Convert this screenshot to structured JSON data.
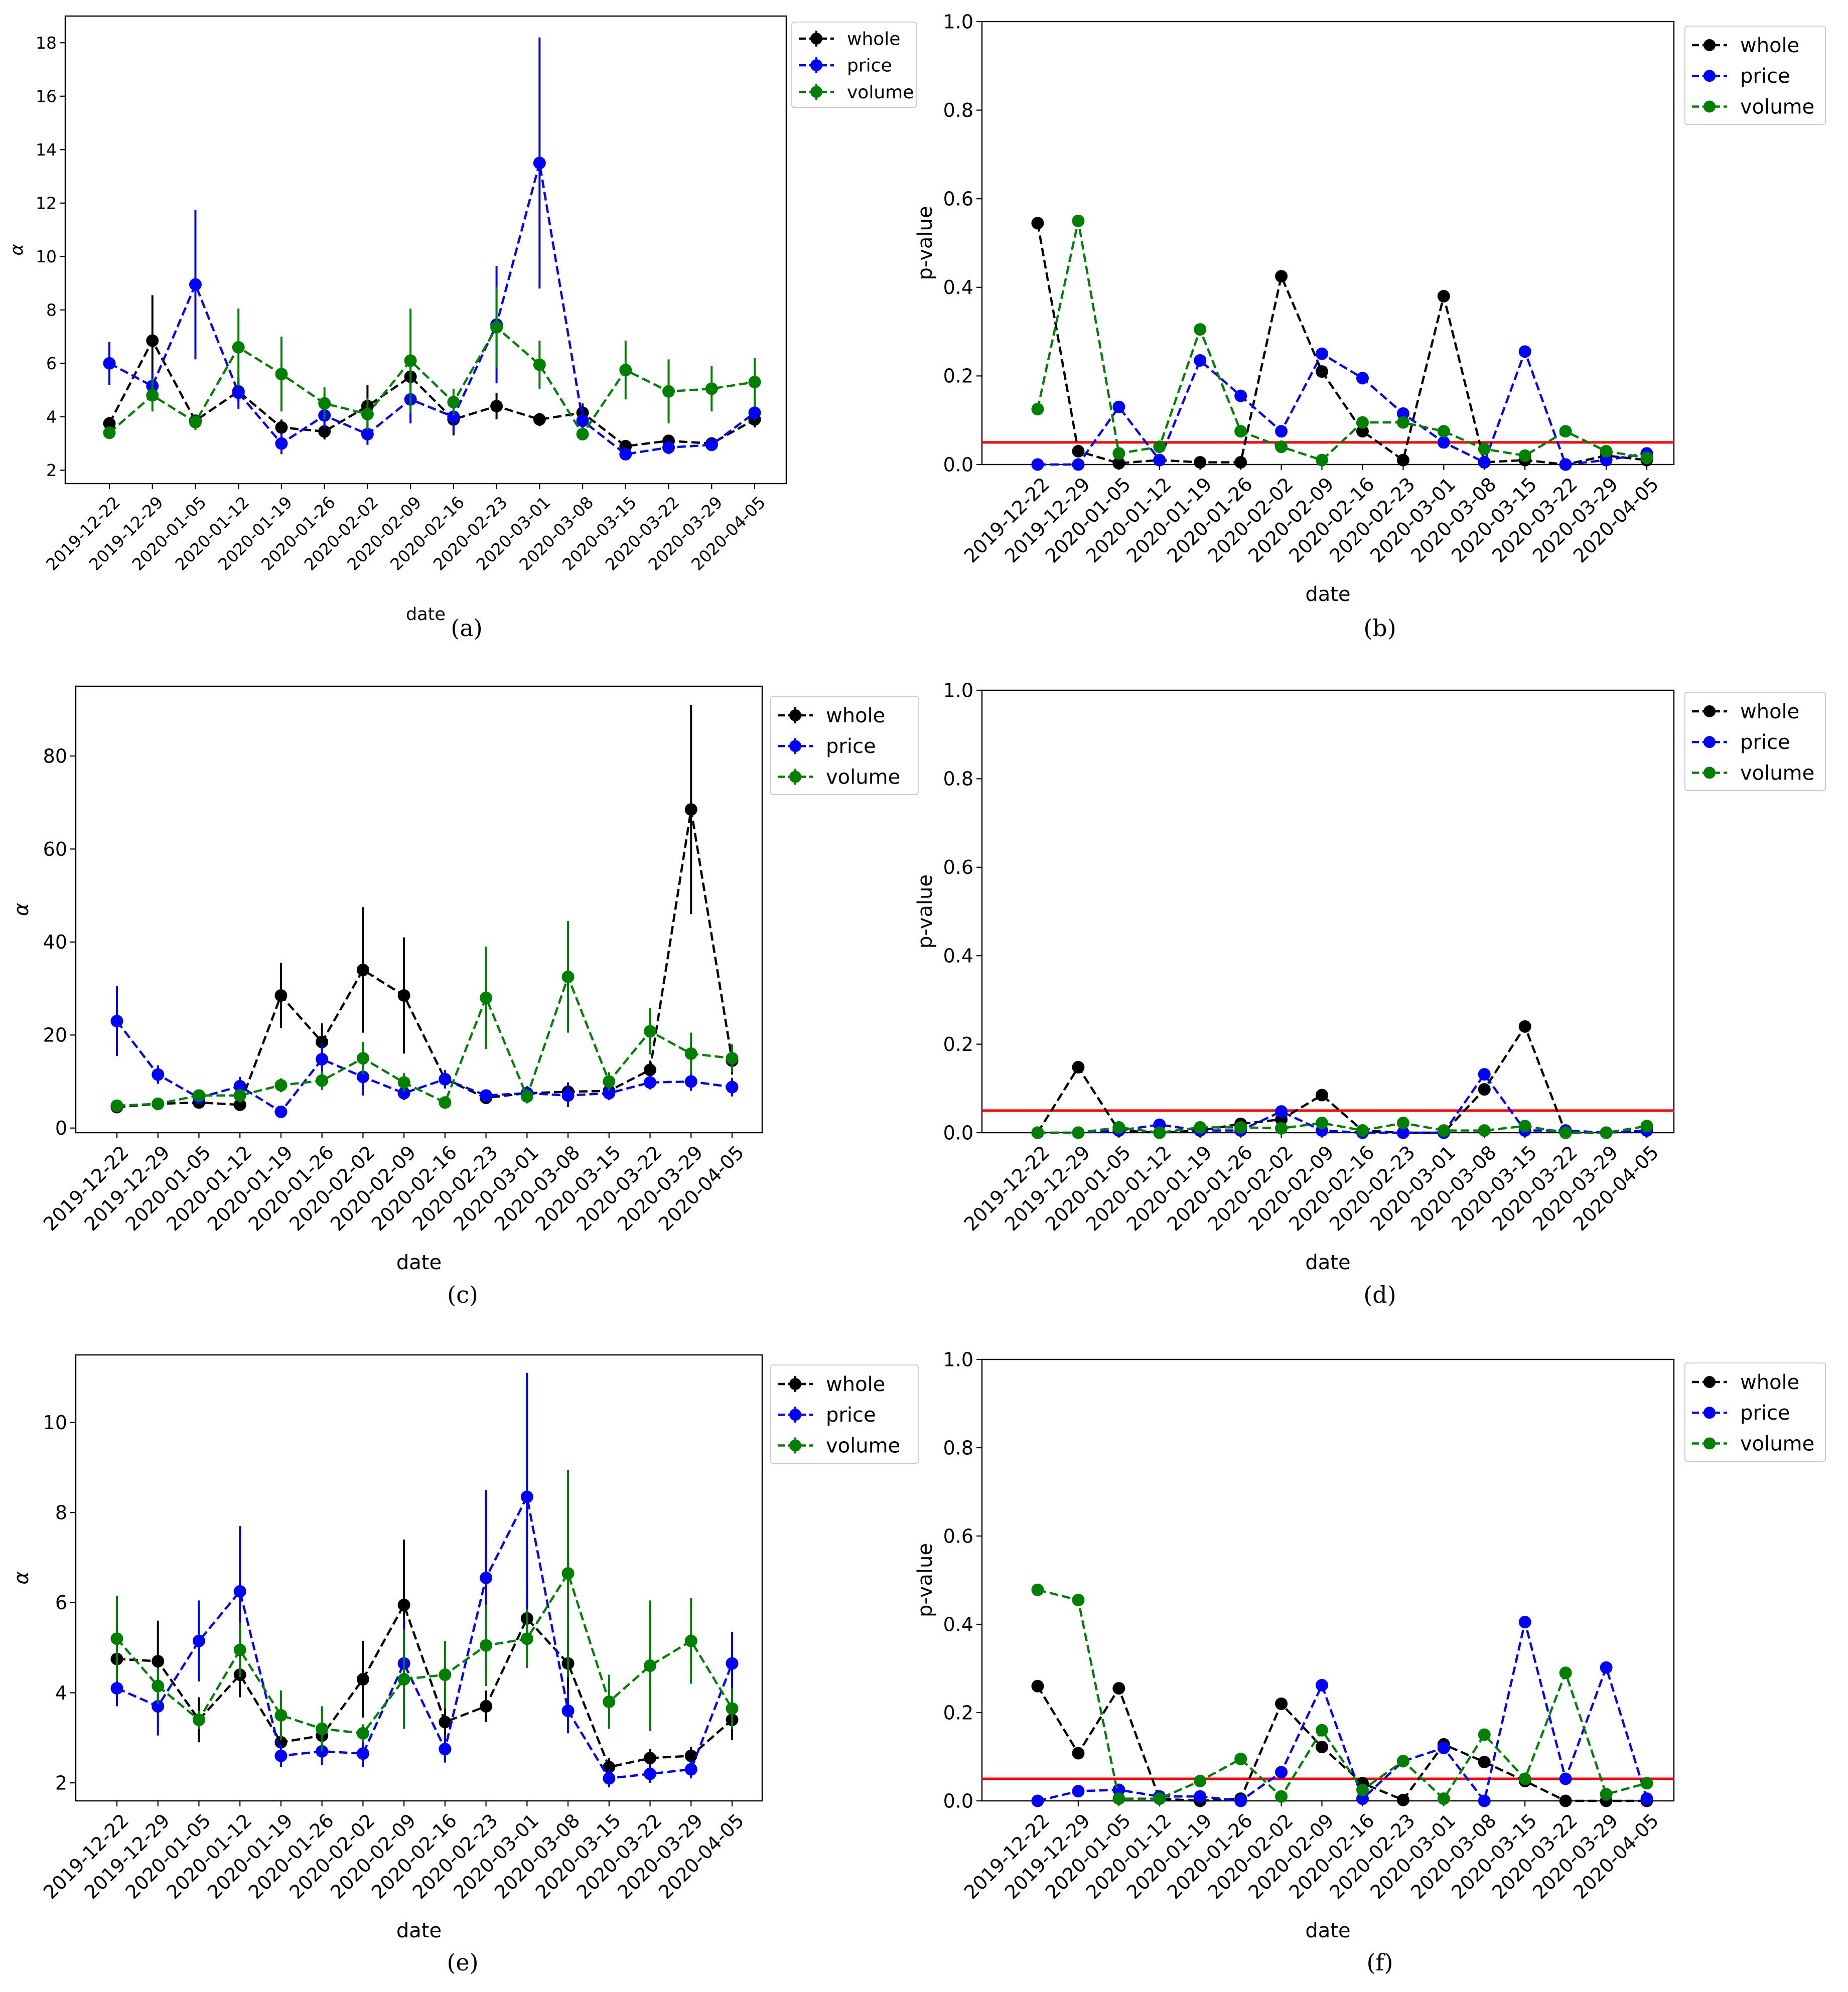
{
  "figure": {
    "dates": [
      "2019-12-22",
      "2019-12-29",
      "2020-01-05",
      "2020-01-12",
      "2020-01-19",
      "2020-01-26",
      "2020-02-02",
      "2020-02-09",
      "2020-02-16",
      "2020-02-23",
      "2020-03-01",
      "2020-03-08",
      "2020-03-15",
      "2020-03-22",
      "2020-03-29",
      "2020-04-05"
    ],
    "series_colors": {
      "whole": "#000000",
      "price": "#0000ff",
      "volume": "#008000"
    },
    "threshold_color": "#ff0000"
  },
  "chart_data": [
    {
      "id": "a",
      "caption": "(a)",
      "type": "line",
      "errorbars": true,
      "xlabel": "date",
      "ylabel": "α",
      "ylim": [
        1.5,
        19.0
      ],
      "yticks": [
        2,
        4,
        6,
        8,
        10,
        12,
        14,
        16,
        18
      ],
      "ytick_labels": [
        "2",
        "4",
        "6",
        "8",
        "10",
        "12",
        "14",
        "16",
        "18"
      ],
      "legend": [
        "whole",
        "price",
        "volume"
      ],
      "series": [
        {
          "name": "whole",
          "values": [
            3.75,
            6.85,
            3.85,
            4.95,
            3.6,
            3.45,
            4.4,
            5.5,
            3.9,
            4.4,
            3.9,
            4.15,
            2.9,
            3.1,
            3.0,
            3.9
          ],
          "errors": [
            0.25,
            1.7,
            0.25,
            0.4,
            0.3,
            0.3,
            0.8,
            0.4,
            0.6,
            0.5,
            0.25,
            0.35,
            0.2,
            0.2,
            0.2,
            0.3
          ]
        },
        {
          "name": "price",
          "values": [
            6.0,
            5.15,
            8.95,
            4.9,
            3.0,
            4.05,
            3.35,
            4.65,
            4.0,
            7.45,
            13.5,
            3.85,
            2.6,
            2.85,
            2.95,
            4.15
          ],
          "errors": [
            0.8,
            0.5,
            2.8,
            0.6,
            0.4,
            0.5,
            0.4,
            0.9,
            0.6,
            2.2,
            4.7,
            0.5,
            0.2,
            0.25,
            0.2,
            0.3
          ]
        },
        {
          "name": "volume",
          "values": [
            3.4,
            4.8,
            3.8,
            6.6,
            5.6,
            4.5,
            4.1,
            6.1,
            4.55,
            7.35,
            5.95,
            3.35,
            5.75,
            4.95,
            5.05,
            5.3
          ],
          "errors": [
            0.2,
            0.6,
            0.3,
            1.45,
            1.4,
            0.6,
            0.6,
            1.95,
            0.5,
            1.5,
            0.9,
            0.2,
            1.1,
            1.2,
            0.85,
            0.9
          ]
        }
      ]
    },
    {
      "id": "b",
      "caption": "(b)",
      "type": "line",
      "xlabel": "date",
      "ylabel": "p-value",
      "ylim": [
        0.0,
        1.0
      ],
      "yticks": [
        0.0,
        0.2,
        0.4,
        0.6,
        0.8,
        1.0
      ],
      "ytick_labels": [
        "0.0",
        "0.2",
        "0.4",
        "0.6",
        "0.8",
        "1.0"
      ],
      "threshold": 0.05,
      "legend": [
        "whole",
        "price",
        "volume"
      ],
      "series": [
        {
          "name": "whole",
          "values": [
            0.545,
            0.03,
            0.003,
            0.01,
            0.005,
            0.005,
            0.425,
            0.21,
            0.075,
            0.01,
            0.38,
            0.005,
            0.01,
            0.0,
            0.02,
            0.01
          ]
        },
        {
          "name": "price",
          "values": [
            0.0,
            0.0,
            0.13,
            0.01,
            0.235,
            0.155,
            0.075,
            0.25,
            0.195,
            0.115,
            0.05,
            0.005,
            0.255,
            0.0,
            0.01,
            0.025
          ]
        },
        {
          "name": "volume",
          "values": [
            0.125,
            0.55,
            0.025,
            0.04,
            0.305,
            0.075,
            0.04,
            0.01,
            0.095,
            0.095,
            0.075,
            0.035,
            0.02,
            0.075,
            0.03,
            0.015
          ]
        }
      ]
    },
    {
      "id": "c",
      "caption": "(c)",
      "type": "line",
      "errorbars": true,
      "xlabel": "date",
      "ylabel": "α",
      "ylim": [
        -1.0,
        95.0
      ],
      "yticks": [
        0,
        20,
        40,
        60,
        80
      ],
      "ytick_labels": [
        "0",
        "20",
        "40",
        "60",
        "80"
      ],
      "legend": [
        "whole",
        "price",
        "volume"
      ],
      "series": [
        {
          "name": "whole",
          "values": [
            4.5,
            5.2,
            5.5,
            5.0,
            28.5,
            18.5,
            34.0,
            28.5,
            10.5,
            6.5,
            7.5,
            7.8,
            8.0,
            12.5,
            68.5,
            14.5
          ],
          "errors": [
            0.5,
            0.5,
            0.8,
            0.8,
            7.0,
            4.0,
            13.5,
            12.5,
            1.5,
            1.0,
            1.0,
            2.0,
            1.0,
            2.0,
            22.5,
            3.0
          ]
        },
        {
          "name": "price",
          "values": [
            23.0,
            11.5,
            6.5,
            9.0,
            3.5,
            14.8,
            11.0,
            7.5,
            10.5,
            7.0,
            7.5,
            7.0,
            7.5,
            9.8,
            10.0,
            8.8
          ],
          "errors": [
            7.5,
            2.0,
            1.0,
            2.0,
            1.0,
            3.5,
            4.0,
            1.5,
            2.0,
            1.0,
            1.5,
            2.5,
            1.5,
            1.5,
            2.0,
            2.0
          ]
        },
        {
          "name": "volume",
          "values": [
            4.8,
            5.2,
            7.0,
            7.0,
            9.2,
            10.2,
            15.0,
            9.8,
            5.5,
            28.0,
            6.8,
            32.5,
            10.0,
            20.8,
            16.0,
            15.0
          ],
          "errors": [
            1.0,
            1.0,
            1.0,
            1.5,
            1.5,
            2.0,
            3.5,
            2.0,
            1.0,
            11.0,
            1.5,
            12.0,
            2.0,
            5.0,
            4.5,
            3.0
          ]
        }
      ]
    },
    {
      "id": "d",
      "caption": "(d)",
      "type": "line",
      "xlabel": "date",
      "ylabel": "p-value",
      "ylim": [
        0.0,
        1.0
      ],
      "yticks": [
        0.0,
        0.2,
        0.4,
        0.6,
        0.8,
        1.0
      ],
      "ytick_labels": [
        "0.0",
        "0.2",
        "0.4",
        "0.6",
        "0.8",
        "1.0"
      ],
      "threshold": 0.05,
      "legend": [
        "whole",
        "price",
        "volume"
      ],
      "series": [
        {
          "name": "whole",
          "values": [
            0.0,
            0.148,
            0.005,
            0.0,
            0.005,
            0.02,
            0.03,
            0.085,
            0.005,
            0.0,
            0.0,
            0.098,
            0.24,
            0.0,
            0.0,
            0.005
          ]
        },
        {
          "name": "price",
          "values": [
            0.0,
            0.0,
            0.005,
            0.018,
            0.005,
            0.005,
            0.048,
            0.005,
            0.0,
            0.0,
            0.0,
            0.132,
            0.005,
            0.005,
            0.0,
            0.005
          ]
        },
        {
          "name": "volume",
          "values": [
            0.0,
            0.0,
            0.012,
            0.0,
            0.012,
            0.012,
            0.01,
            0.022,
            0.005,
            0.022,
            0.005,
            0.005,
            0.015,
            0.0,
            0.0,
            0.015
          ]
        }
      ]
    },
    {
      "id": "e",
      "caption": "(e)",
      "type": "line",
      "errorbars": true,
      "xlabel": "date",
      "ylabel": "α",
      "ylim": [
        1.6,
        11.5
      ],
      "yticks": [
        2,
        4,
        6,
        8,
        10
      ],
      "ytick_labels": [
        "2",
        "4",
        "6",
        "8",
        "10"
      ],
      "legend": [
        "whole",
        "price",
        "volume"
      ],
      "series": [
        {
          "name": "whole",
          "values": [
            4.75,
            4.7,
            3.4,
            4.4,
            2.9,
            3.05,
            4.3,
            5.95,
            3.35,
            3.7,
            5.65,
            4.65,
            2.35,
            2.55,
            2.6,
            3.4
          ],
          "errors": [
            0.4,
            0.9,
            0.5,
            0.5,
            0.3,
            0.3,
            0.85,
            1.45,
            0.3,
            0.35,
            0.7,
            0.6,
            0.2,
            0.2,
            0.2,
            0.45
          ]
        },
        {
          "name": "price",
          "values": [
            4.1,
            3.7,
            5.15,
            6.25,
            2.6,
            2.7,
            2.65,
            4.65,
            2.75,
            6.55,
            8.35,
            3.6,
            2.1,
            2.2,
            2.3,
            4.65
          ],
          "errors": [
            0.4,
            0.65,
            0.9,
            1.45,
            0.25,
            0.3,
            0.3,
            1.0,
            0.3,
            1.95,
            2.75,
            0.5,
            0.2,
            0.2,
            0.2,
            0.7
          ]
        },
        {
          "name": "volume",
          "values": [
            5.2,
            4.15,
            3.4,
            4.95,
            3.5,
            3.2,
            3.1,
            4.3,
            4.4,
            5.05,
            5.2,
            6.65,
            3.8,
            4.6,
            5.15,
            3.65
          ],
          "errors": [
            0.95,
            0.4,
            0.2,
            0.6,
            0.55,
            0.5,
            0.2,
            1.1,
            0.75,
            0.9,
            0.65,
            2.3,
            0.6,
            1.45,
            0.95,
            0.45
          ]
        }
      ]
    },
    {
      "id": "f",
      "caption": "(f)",
      "type": "line",
      "xlabel": "date",
      "ylabel": "p-value",
      "ylim": [
        0.0,
        1.0
      ],
      "yticks": [
        0.0,
        0.2,
        0.4,
        0.6,
        0.8,
        1.0
      ],
      "ytick_labels": [
        "0.0",
        "0.2",
        "0.4",
        "0.6",
        "0.8",
        "1.0"
      ],
      "threshold": 0.05,
      "legend": [
        "whole",
        "price",
        "volume"
      ],
      "series": [
        {
          "name": "whole",
          "values": [
            0.26,
            0.108,
            0.255,
            0.005,
            0.0,
            0.005,
            0.22,
            0.122,
            0.04,
            0.002,
            0.128,
            0.088,
            0.045,
            0.0,
            0.0,
            0.0
          ]
        },
        {
          "name": "price",
          "values": [
            0.0,
            0.022,
            0.025,
            0.01,
            0.01,
            0.0,
            0.065,
            0.262,
            0.005,
            0.09,
            0.12,
            0.0,
            0.405,
            0.05,
            0.302,
            0.005
          ]
        },
        {
          "name": "volume",
          "values": [
            0.478,
            0.455,
            0.005,
            0.005,
            0.045,
            0.095,
            0.01,
            0.16,
            0.025,
            0.09,
            0.005,
            0.15,
            0.05,
            0.29,
            0.015,
            0.04
          ]
        }
      ]
    }
  ]
}
